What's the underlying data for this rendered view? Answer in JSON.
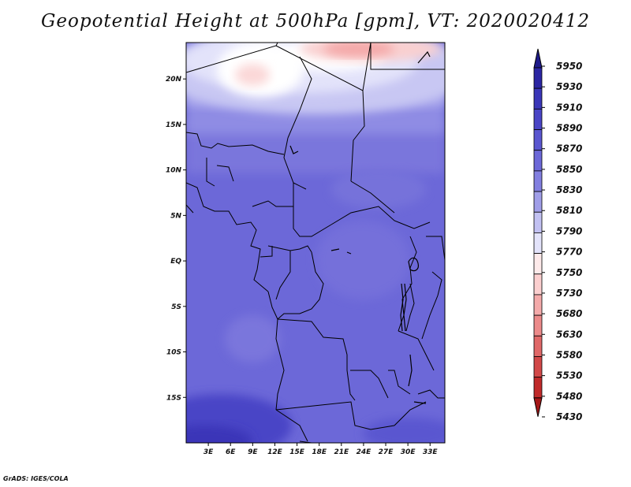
{
  "title": "Geopotential Height at 500hPa [gpm], VT: 2020020412",
  "credit": "GrADS: IGES/COLA",
  "map": {
    "lat_labels": [
      "20N",
      "15N",
      "10N",
      "5N",
      "EQ",
      "5S",
      "10S",
      "15S"
    ],
    "lat_values": [
      20,
      15,
      10,
      5,
      0,
      -5,
      -10,
      -15
    ],
    "lon_labels": [
      "3E",
      "6E",
      "9E",
      "12E",
      "15E",
      "18E",
      "21E",
      "24E",
      "27E",
      "30E",
      "33E"
    ],
    "lon_values": [
      3,
      6,
      9,
      12,
      15,
      18,
      21,
      24,
      27,
      30,
      33
    ],
    "lon_range": [
      0,
      35
    ],
    "lat_range": [
      -20,
      24
    ]
  },
  "colorbar": {
    "levels": [
      "5950",
      "5930",
      "5910",
      "5890",
      "5870",
      "5850",
      "5830",
      "5810",
      "5790",
      "5770",
      "5750",
      "5730",
      "5680",
      "5630",
      "5580",
      "5530",
      "5480",
      "5430"
    ],
    "colors": [
      "#1e1a8a",
      "#2b26a3",
      "#3a36b8",
      "#4a45c6",
      "#5a56d0",
      "#6c68d8",
      "#827fe0",
      "#a09ee8",
      "#c2c1f2",
      "#e3e3fa",
      "#fdeaea",
      "#fbcfcf",
      "#f4aaaa",
      "#ec8a8a",
      "#e06868",
      "#d24848",
      "#c02a2a",
      "#a51818"
    ]
  }
}
